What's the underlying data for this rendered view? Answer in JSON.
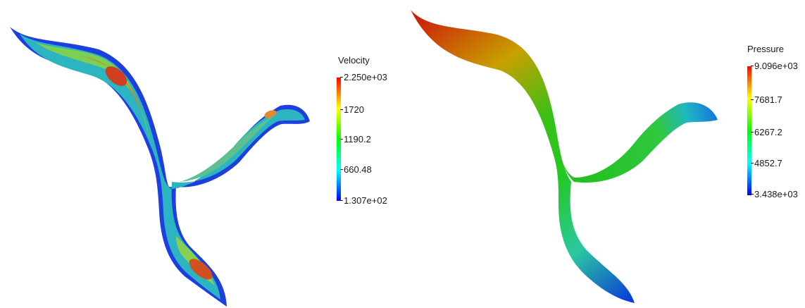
{
  "velocity": {
    "legend_title": "Velocity",
    "ticks": [
      "2.250e+03",
      "1720",
      "1190.2",
      "660.48",
      "1.307e+02"
    ]
  },
  "pressure": {
    "legend_title": "Pressure",
    "ticks": [
      "9.096e+03",
      "7681.7",
      "6267.2",
      "4852.7",
      "3.438e+03"
    ]
  },
  "colors": {
    "colormap": [
      "#0000ff",
      "#00ffff",
      "#00ff00",
      "#ffff00",
      "#ff0000"
    ]
  }
}
